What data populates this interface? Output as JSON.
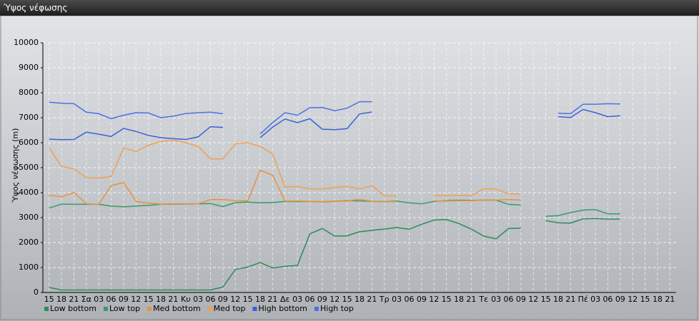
{
  "window_title": "Ύψος νέφωσης",
  "chart_data": {
    "type": "line",
    "y_label": "Ύψος νέφωσης (m)",
    "categories": [
      "15",
      "18",
      "21",
      "Σα",
      "03",
      "06",
      "09",
      "12",
      "15",
      "18",
      "21",
      "Κυ",
      "03",
      "06",
      "09",
      "12",
      "15",
      "18",
      "21",
      "Δε",
      "03",
      "06",
      "09",
      "12",
      "15",
      "18",
      "21",
      "Τρ",
      "03",
      "06",
      "09",
      "12",
      "15",
      "18",
      "21",
      "Τε",
      "03",
      "06",
      "09",
      "12",
      "15",
      "18",
      "21",
      "Πέ",
      "03",
      "06",
      "09",
      "12",
      "15",
      "18",
      "21"
    ],
    "ylim": [
      0,
      10000
    ],
    "yticks": [
      0,
      1000,
      2000,
      3000,
      4000,
      5000,
      6000,
      7000,
      8000,
      9000,
      10000
    ],
    "grid": true,
    "legend": "bottom",
    "series": [
      {
        "name": "Low bottom",
        "color": "#2e8b57",
        "values": [
          200,
          100,
          100,
          100,
          100,
          100,
          100,
          100,
          100,
          100,
          100,
          100,
          100,
          100,
          220,
          920,
          1020,
          1200,
          980,
          1050,
          1080,
          2350,
          2560,
          2260,
          2270,
          2430,
          2490,
          2540,
          2600,
          2530,
          2730,
          2900,
          2920,
          2760,
          2540,
          2260,
          2150,
          2560,
          2580,
          null,
          2880,
          2790,
          2780,
          2950,
          2960,
          2940,
          2940,
          null,
          null,
          null,
          null
        ]
      },
      {
        "name": "Low top",
        "color": "#3a9a66",
        "values": [
          3380,
          3540,
          3530,
          3530,
          3530,
          3460,
          3430,
          3460,
          3490,
          3530,
          3540,
          3540,
          3550,
          3560,
          3440,
          3600,
          3620,
          3590,
          3600,
          3650,
          3640,
          3650,
          3630,
          3650,
          3680,
          3670,
          3650,
          3640,
          3660,
          3590,
          3550,
          3650,
          3680,
          3700,
          3690,
          3700,
          3700,
          3530,
          3500,
          null,
          3050,
          3080,
          3200,
          3300,
          3320,
          3150,
          3150,
          null,
          null,
          null,
          null
        ]
      },
      {
        "name": "Med bottom",
        "color": "#e8923a",
        "values": [
          3900,
          3830,
          4000,
          3550,
          3530,
          4280,
          4400,
          3650,
          3580,
          3540,
          3550,
          3550,
          3550,
          3720,
          3720,
          3680,
          3670,
          4900,
          4700,
          3660,
          3660,
          3650,
          3640,
          3660,
          3660,
          3730,
          3650,
          3640,
          3640,
          null,
          null,
          3670,
          3660,
          3680,
          3680,
          3700,
          3700,
          3720,
          3700,
          null,
          null,
          null,
          null,
          null,
          null,
          null,
          null,
          null,
          null,
          null,
          null
        ]
      },
      {
        "name": "Med top",
        "color": "#f0a050",
        "values": [
          5800,
          5050,
          4950,
          4600,
          4580,
          4650,
          5780,
          5650,
          5900,
          6050,
          6100,
          6000,
          5850,
          5350,
          5350,
          5950,
          6000,
          5850,
          5550,
          4220,
          4250,
          4150,
          4150,
          4200,
          4250,
          4150,
          4280,
          3870,
          3870,
          null,
          null,
          3880,
          3880,
          3880,
          3880,
          4150,
          4150,
          3950,
          3950,
          null,
          null,
          null,
          null,
          null,
          null,
          null,
          null,
          null,
          null,
          null,
          null
        ]
      },
      {
        "name": "High bottom",
        "color": "#3a62d6",
        "values": [
          6140,
          6120,
          6130,
          6420,
          6340,
          6250,
          6570,
          6450,
          6290,
          6200,
          6160,
          6130,
          6230,
          6640,
          6610,
          null,
          null,
          6200,
          6620,
          6950,
          6800,
          6960,
          6540,
          6520,
          6560,
          7150,
          7230,
          null,
          null,
          null,
          null,
          null,
          null,
          null,
          null,
          null,
          null,
          null,
          null,
          null,
          null,
          7040,
          7010,
          7330,
          7200,
          7040,
          7080,
          null,
          null,
          null,
          null
        ]
      },
      {
        "name": "High top",
        "color": "#4a72e6",
        "values": [
          7620,
          7580,
          7560,
          7220,
          7160,
          6960,
          7100,
          7200,
          7190,
          7000,
          7060,
          7170,
          7200,
          7220,
          7160,
          null,
          null,
          6350,
          6800,
          7200,
          7100,
          7400,
          7410,
          7280,
          7380,
          7640,
          7640,
          null,
          null,
          null,
          null,
          null,
          null,
          null,
          null,
          null,
          null,
          null,
          null,
          null,
          null,
          7180,
          7160,
          7540,
          7540,
          7560,
          7550,
          null,
          null,
          null,
          null
        ]
      }
    ]
  }
}
